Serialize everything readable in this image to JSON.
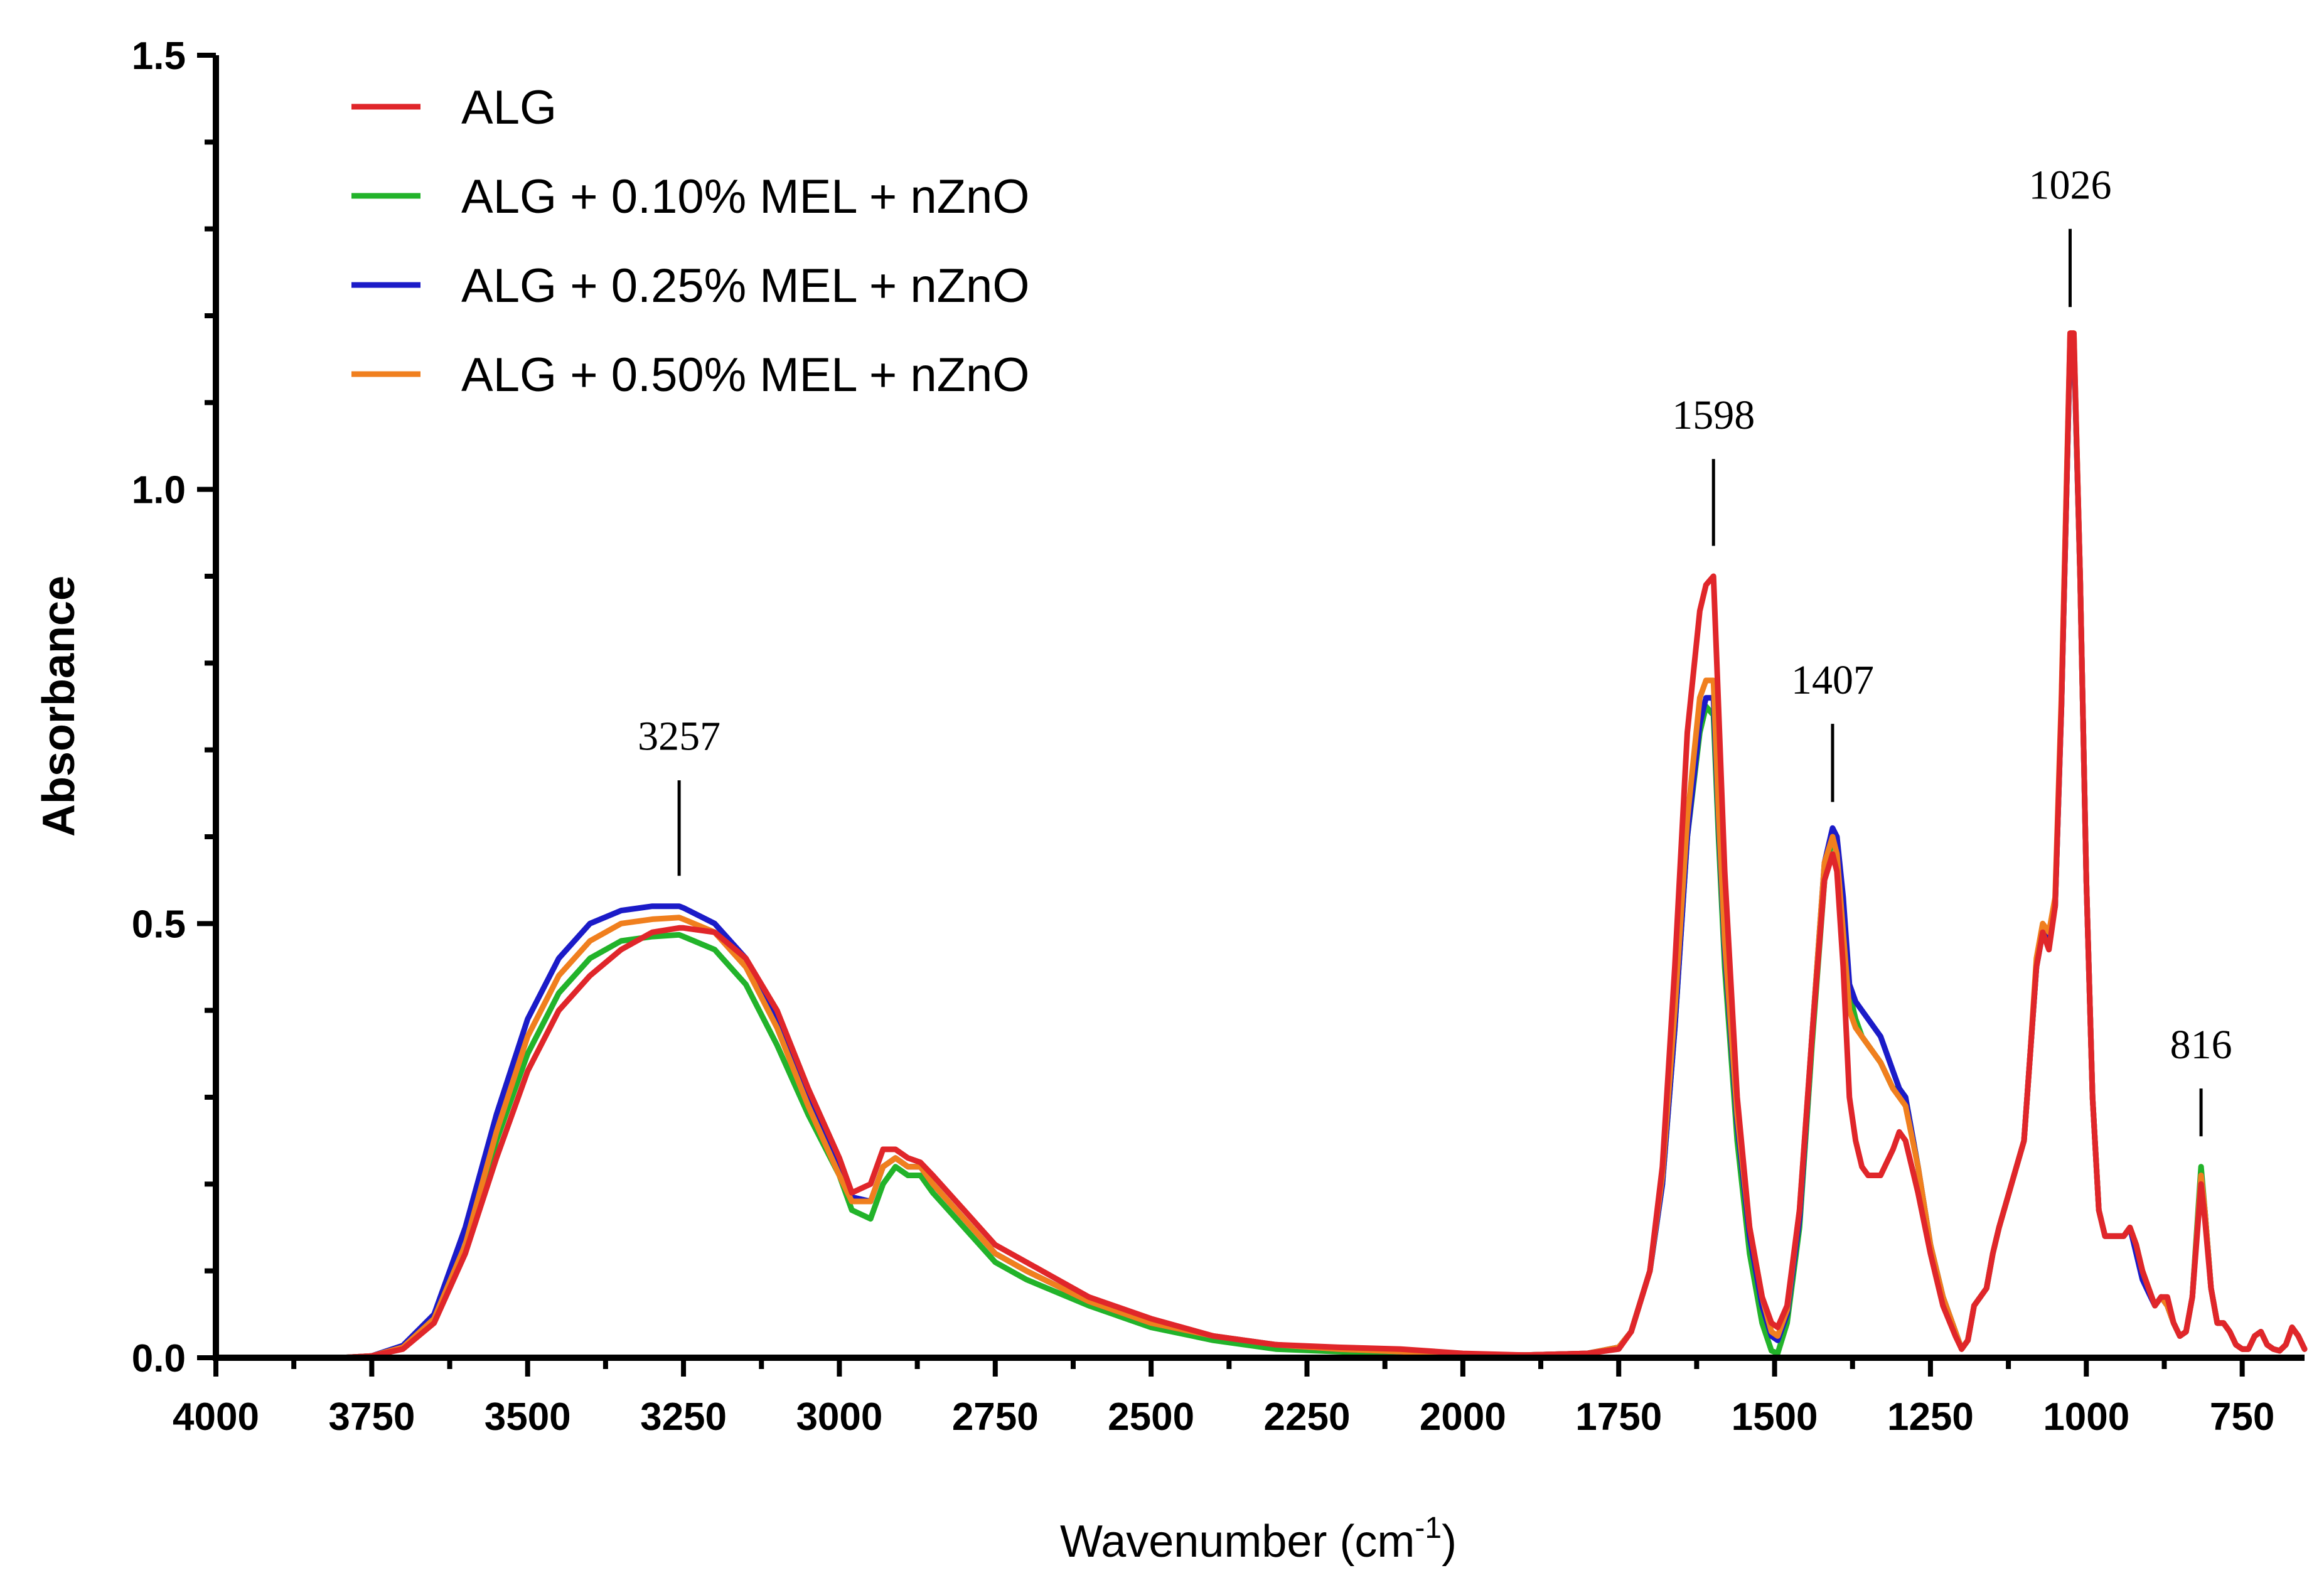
{
  "chart_data": {
    "type": "line",
    "title": "",
    "xlabel": "Wavenumber (cm",
    "xlabel_sup": "-1",
    "xlabel_close": ")",
    "ylabel": "Absorbance",
    "xlim": [
      4000,
      650
    ],
    "ylim": [
      0,
      1.5
    ],
    "x_reversed": true,
    "x_ticks": [
      4000,
      3750,
      3500,
      3250,
      3000,
      2750,
      2500,
      2250,
      2000,
      1750,
      1500,
      1250,
      1000,
      750
    ],
    "x_tick_labels": [
      "4000",
      "3750",
      "3500",
      "3250",
      "3000",
      "2750",
      "2500",
      "2250",
      "2000",
      "1750",
      "1500",
      "1250",
      "1000",
      "750"
    ],
    "y_ticks": [
      0,
      0.5,
      1.0,
      1.5
    ],
    "y_tick_labels": [
      "0.0",
      "0.5",
      "1.0",
      "1.5"
    ],
    "legend_position": "top-left",
    "grid": false,
    "series": [
      {
        "name": "ALG + 0.10% MEL + nZnO",
        "color": "#22b32a",
        "x": [
          4000,
          3800,
          3750,
          3700,
          3650,
          3600,
          3550,
          3500,
          3450,
          3400,
          3350,
          3300,
          3257,
          3250,
          3200,
          3150,
          3100,
          3050,
          3000,
          2980,
          2950,
          2930,
          2910,
          2890,
          2870,
          2850,
          2800,
          2750,
          2700,
          2600,
          2500,
          2400,
          2300,
          2200,
          2100,
          2000,
          1900,
          1800,
          1750,
          1730,
          1700,
          1680,
          1660,
          1640,
          1620,
          1610,
          1598,
          1590,
          1580,
          1560,
          1540,
          1520,
          1505,
          1495,
          1480,
          1460,
          1440,
          1420,
          1407,
          1400,
          1390,
          1380,
          1370,
          1360,
          1350,
          1330,
          1310,
          1300,
          1290,
          1270,
          1250,
          1230,
          1210,
          1200,
          1190,
          1180,
          1170,
          1160,
          1150,
          1140,
          1120,
          1100,
          1090,
          1080,
          1070,
          1060,
          1050,
          1040,
          1030,
          1026,
          1020,
          1010,
          1000,
          990,
          980,
          970,
          960,
          950,
          940,
          930,
          920,
          910,
          900,
          890,
          880,
          870,
          860,
          850,
          840,
          830,
          816,
          810,
          800,
          790,
          780,
          770,
          760,
          750,
          740,
          730,
          720,
          710,
          700,
          690,
          680,
          670,
          660,
          650
        ],
        "y": [
          0.0,
          0.0,
          0.002,
          0.012,
          0.045,
          0.13,
          0.25,
          0.35,
          0.42,
          0.46,
          0.48,
          0.485,
          0.487,
          0.485,
          0.47,
          0.43,
          0.36,
          0.28,
          0.21,
          0.17,
          0.16,
          0.2,
          0.22,
          0.21,
          0.21,
          0.19,
          0.15,
          0.11,
          0.09,
          0.06,
          0.035,
          0.02,
          0.01,
          0.007,
          0.005,
          0.003,
          0.003,
          0.005,
          0.012,
          0.03,
          0.1,
          0.2,
          0.38,
          0.6,
          0.72,
          0.75,
          0.74,
          0.6,
          0.45,
          0.25,
          0.12,
          0.04,
          0.008,
          0.005,
          0.04,
          0.15,
          0.36,
          0.55,
          0.6,
          0.58,
          0.5,
          0.42,
          0.39,
          0.37,
          0.36,
          0.34,
          0.31,
          0.31,
          0.3,
          0.22,
          0.13,
          0.07,
          0.03,
          0.01,
          0.02,
          0.06,
          0.07,
          0.08,
          0.12,
          0.15,
          0.2,
          0.25,
          0.35,
          0.45,
          0.49,
          0.48,
          0.52,
          0.75,
          1.05,
          1.17,
          1.17,
          0.9,
          0.55,
          0.3,
          0.17,
          0.14,
          0.14,
          0.14,
          0.14,
          0.15,
          0.13,
          0.1,
          0.08,
          0.06,
          0.07,
          0.06,
          0.04,
          0.025,
          0.03,
          0.07,
          0.22,
          0.17,
          0.08,
          0.04,
          0.04,
          0.03,
          0.015,
          0.01,
          0.01,
          0.025,
          0.03,
          0.015,
          0.01,
          0.008,
          0.015,
          0.035,
          0.025,
          0.01
        ]
      },
      {
        "name": "ALG + 0.25% MEL + nZnO",
        "color": "#1b1bc8",
        "x": [
          4000,
          3800,
          3750,
          3700,
          3650,
          3600,
          3550,
          3500,
          3450,
          3400,
          3350,
          3300,
          3257,
          3250,
          3200,
          3150,
          3100,
          3050,
          3000,
          2980,
          2950,
          2930,
          2910,
          2890,
          2870,
          2850,
          2800,
          2750,
          2700,
          2600,
          2500,
          2400,
          2300,
          2200,
          2100,
          2000,
          1900,
          1800,
          1750,
          1730,
          1700,
          1680,
          1660,
          1640,
          1620,
          1610,
          1598,
          1590,
          1580,
          1560,
          1540,
          1520,
          1505,
          1495,
          1480,
          1460,
          1440,
          1420,
          1407,
          1400,
          1390,
          1380,
          1370,
          1360,
          1350,
          1330,
          1310,
          1300,
          1290,
          1270,
          1250,
          1230,
          1210,
          1200,
          1190,
          1180,
          1170,
          1160,
          1150,
          1140,
          1120,
          1100,
          1090,
          1080,
          1070,
          1060,
          1050,
          1040,
          1030,
          1026,
          1020,
          1010,
          1000,
          990,
          980,
          970,
          960,
          950,
          940,
          930,
          920,
          910,
          900,
          890,
          880,
          870,
          860,
          850,
          840,
          830,
          816,
          810,
          800,
          790,
          780,
          770,
          760,
          750,
          740,
          730,
          720,
          710,
          700,
          690,
          680,
          670,
          660,
          650
        ],
        "y": [
          0.0,
          0.0,
          0.002,
          0.014,
          0.05,
          0.15,
          0.28,
          0.39,
          0.46,
          0.5,
          0.515,
          0.52,
          0.52,
          0.518,
          0.5,
          0.46,
          0.39,
          0.3,
          0.22,
          0.185,
          0.18,
          0.22,
          0.23,
          0.22,
          0.22,
          0.2,
          0.16,
          0.12,
          0.1,
          0.065,
          0.04,
          0.025,
          0.015,
          0.01,
          0.007,
          0.004,
          0.003,
          0.005,
          0.012,
          0.03,
          0.1,
          0.2,
          0.38,
          0.6,
          0.73,
          0.76,
          0.76,
          0.62,
          0.47,
          0.27,
          0.14,
          0.06,
          0.025,
          0.02,
          0.05,
          0.16,
          0.37,
          0.57,
          0.61,
          0.6,
          0.53,
          0.43,
          0.41,
          0.4,
          0.39,
          0.37,
          0.33,
          0.31,
          0.3,
          0.22,
          0.13,
          0.07,
          0.03,
          0.01,
          0.02,
          0.06,
          0.07,
          0.08,
          0.12,
          0.15,
          0.2,
          0.25,
          0.35,
          0.45,
          0.49,
          0.48,
          0.52,
          0.75,
          1.05,
          1.17,
          1.17,
          0.9,
          0.55,
          0.3,
          0.17,
          0.14,
          0.14,
          0.14,
          0.14,
          0.15,
          0.12,
          0.09,
          0.075,
          0.06,
          0.07,
          0.06,
          0.04,
          0.025,
          0.03,
          0.07,
          0.21,
          0.17,
          0.08,
          0.04,
          0.04,
          0.03,
          0.015,
          0.01,
          0.01,
          0.025,
          0.03,
          0.015,
          0.01,
          0.008,
          0.015,
          0.035,
          0.025,
          0.01
        ]
      },
      {
        "name": "ALG + 0.50% MEL + nZnO",
        "color": "#f07f1e",
        "x": [
          4000,
          3800,
          3750,
          3700,
          3650,
          3600,
          3550,
          3500,
          3450,
          3400,
          3350,
          3300,
          3257,
          3250,
          3200,
          3150,
          3100,
          3050,
          3000,
          2980,
          2950,
          2930,
          2910,
          2890,
          2870,
          2850,
          2800,
          2750,
          2700,
          2600,
          2500,
          2400,
          2300,
          2200,
          2100,
          2000,
          1900,
          1800,
          1750,
          1730,
          1700,
          1680,
          1660,
          1640,
          1620,
          1610,
          1598,
          1590,
          1580,
          1560,
          1540,
          1520,
          1505,
          1495,
          1480,
          1460,
          1440,
          1420,
          1407,
          1400,
          1390,
          1380,
          1370,
          1360,
          1350,
          1330,
          1310,
          1300,
          1290,
          1270,
          1250,
          1230,
          1210,
          1200,
          1190,
          1180,
          1170,
          1160,
          1150,
          1140,
          1120,
          1100,
          1090,
          1080,
          1070,
          1060,
          1050,
          1040,
          1030,
          1026,
          1020,
          1010,
          1000,
          990,
          980,
          970,
          960,
          950,
          940,
          930,
          920,
          910,
          900,
          890,
          880,
          870,
          860,
          850,
          840,
          830,
          816,
          810,
          800,
          790,
          780,
          770,
          760,
          750,
          740,
          730,
          720,
          710,
          700,
          690,
          680,
          670,
          660,
          650
        ],
        "y": [
          0.0,
          0.0,
          0.002,
          0.012,
          0.045,
          0.13,
          0.26,
          0.37,
          0.44,
          0.48,
          0.5,
          0.505,
          0.507,
          0.505,
          0.49,
          0.45,
          0.38,
          0.29,
          0.21,
          0.18,
          0.18,
          0.22,
          0.23,
          0.22,
          0.22,
          0.2,
          0.16,
          0.12,
          0.1,
          0.065,
          0.04,
          0.025,
          0.015,
          0.01,
          0.007,
          0.004,
          0.003,
          0.005,
          0.012,
          0.03,
          0.1,
          0.21,
          0.4,
          0.62,
          0.76,
          0.78,
          0.78,
          0.63,
          0.48,
          0.28,
          0.15,
          0.07,
          0.03,
          0.025,
          0.055,
          0.17,
          0.37,
          0.57,
          0.6,
          0.58,
          0.49,
          0.4,
          0.38,
          0.37,
          0.36,
          0.34,
          0.31,
          0.3,
          0.29,
          0.22,
          0.13,
          0.07,
          0.03,
          0.01,
          0.02,
          0.06,
          0.07,
          0.08,
          0.12,
          0.15,
          0.2,
          0.25,
          0.35,
          0.46,
          0.5,
          0.49,
          0.53,
          0.76,
          1.06,
          1.18,
          1.18,
          0.9,
          0.55,
          0.3,
          0.17,
          0.14,
          0.14,
          0.14,
          0.14,
          0.15,
          0.13,
          0.1,
          0.08,
          0.06,
          0.07,
          0.06,
          0.04,
          0.025,
          0.03,
          0.07,
          0.21,
          0.17,
          0.08,
          0.04,
          0.04,
          0.03,
          0.015,
          0.01,
          0.01,
          0.025,
          0.03,
          0.015,
          0.01,
          0.008,
          0.015,
          0.035,
          0.025,
          0.01
        ]
      },
      {
        "name": "ALG",
        "color": "#e0262a",
        "x": [
          4000,
          3800,
          3750,
          3700,
          3650,
          3600,
          3550,
          3500,
          3450,
          3400,
          3350,
          3300,
          3257,
          3250,
          3200,
          3150,
          3100,
          3050,
          3000,
          2980,
          2950,
          2930,
          2910,
          2890,
          2870,
          2850,
          2800,
          2750,
          2700,
          2600,
          2500,
          2400,
          2300,
          2200,
          2100,
          2000,
          1900,
          1800,
          1750,
          1730,
          1700,
          1680,
          1660,
          1640,
          1620,
          1610,
          1598,
          1590,
          1580,
          1560,
          1540,
          1520,
          1505,
          1495,
          1480,
          1460,
          1440,
          1420,
          1407,
          1400,
          1390,
          1380,
          1370,
          1360,
          1350,
          1330,
          1310,
          1300,
          1290,
          1270,
          1250,
          1230,
          1210,
          1200,
          1190,
          1180,
          1170,
          1160,
          1150,
          1140,
          1120,
          1100,
          1090,
          1080,
          1070,
          1060,
          1050,
          1040,
          1030,
          1026,
          1020,
          1010,
          1000,
          990,
          980,
          970,
          960,
          950,
          940,
          930,
          920,
          910,
          900,
          890,
          880,
          870,
          860,
          850,
          840,
          830,
          816,
          810,
          800,
          790,
          780,
          770,
          760,
          750,
          740,
          730,
          720,
          710,
          700,
          690,
          680,
          670,
          660,
          650
        ],
        "y": [
          0.0,
          0.0,
          0.002,
          0.01,
          0.04,
          0.12,
          0.23,
          0.33,
          0.4,
          0.44,
          0.47,
          0.49,
          0.495,
          0.495,
          0.49,
          0.46,
          0.4,
          0.31,
          0.23,
          0.19,
          0.2,
          0.24,
          0.24,
          0.23,
          0.225,
          0.21,
          0.17,
          0.13,
          0.11,
          0.07,
          0.045,
          0.025,
          0.015,
          0.012,
          0.01,
          0.005,
          0.003,
          0.005,
          0.01,
          0.03,
          0.1,
          0.22,
          0.45,
          0.72,
          0.86,
          0.89,
          0.9,
          0.75,
          0.56,
          0.3,
          0.15,
          0.07,
          0.04,
          0.035,
          0.06,
          0.17,
          0.37,
          0.55,
          0.58,
          0.56,
          0.45,
          0.3,
          0.25,
          0.22,
          0.21,
          0.21,
          0.24,
          0.26,
          0.25,
          0.19,
          0.12,
          0.06,
          0.025,
          0.01,
          0.02,
          0.06,
          0.07,
          0.08,
          0.12,
          0.15,
          0.2,
          0.25,
          0.35,
          0.45,
          0.49,
          0.47,
          0.52,
          0.75,
          1.05,
          1.18,
          1.18,
          0.9,
          0.55,
          0.3,
          0.17,
          0.14,
          0.14,
          0.14,
          0.14,
          0.15,
          0.13,
          0.1,
          0.08,
          0.06,
          0.07,
          0.07,
          0.04,
          0.025,
          0.03,
          0.07,
          0.2,
          0.16,
          0.08,
          0.04,
          0.04,
          0.03,
          0.015,
          0.01,
          0.01,
          0.025,
          0.03,
          0.015,
          0.01,
          0.008,
          0.015,
          0.035,
          0.025,
          0.01
        ]
      }
    ],
    "legend": [
      {
        "name": "ALG",
        "color": "#e0262a"
      },
      {
        "name": "ALG + 0.10% MEL + nZnO",
        "color": "#22b32a"
      },
      {
        "name": "ALG + 0.25% MEL + nZnO",
        "color": "#1b1bc8"
      },
      {
        "name": "ALG + 0.50% MEL + nZnO",
        "color": "#f07f1e"
      }
    ],
    "annotations": [
      {
        "label": "3257",
        "x": 3257,
        "y_line_bottom": 0.555,
        "y_line_top": 0.665,
        "y_text": 0.7
      },
      {
        "label": "1598",
        "x": 1598,
        "y_line_bottom": 0.935,
        "y_line_top": 1.035,
        "y_text": 1.07
      },
      {
        "label": "1407",
        "x": 1407,
        "y_line_bottom": 0.64,
        "y_line_top": 0.73,
        "y_text": 0.765
      },
      {
        "label": "1026",
        "x": 1026,
        "y_line_bottom": 1.21,
        "y_line_top": 1.3,
        "y_text": 1.335
      },
      {
        "label": "816",
        "x": 816,
        "y_line_bottom": 0.255,
        "y_line_top": 0.31,
        "y_text": 0.345
      }
    ]
  }
}
